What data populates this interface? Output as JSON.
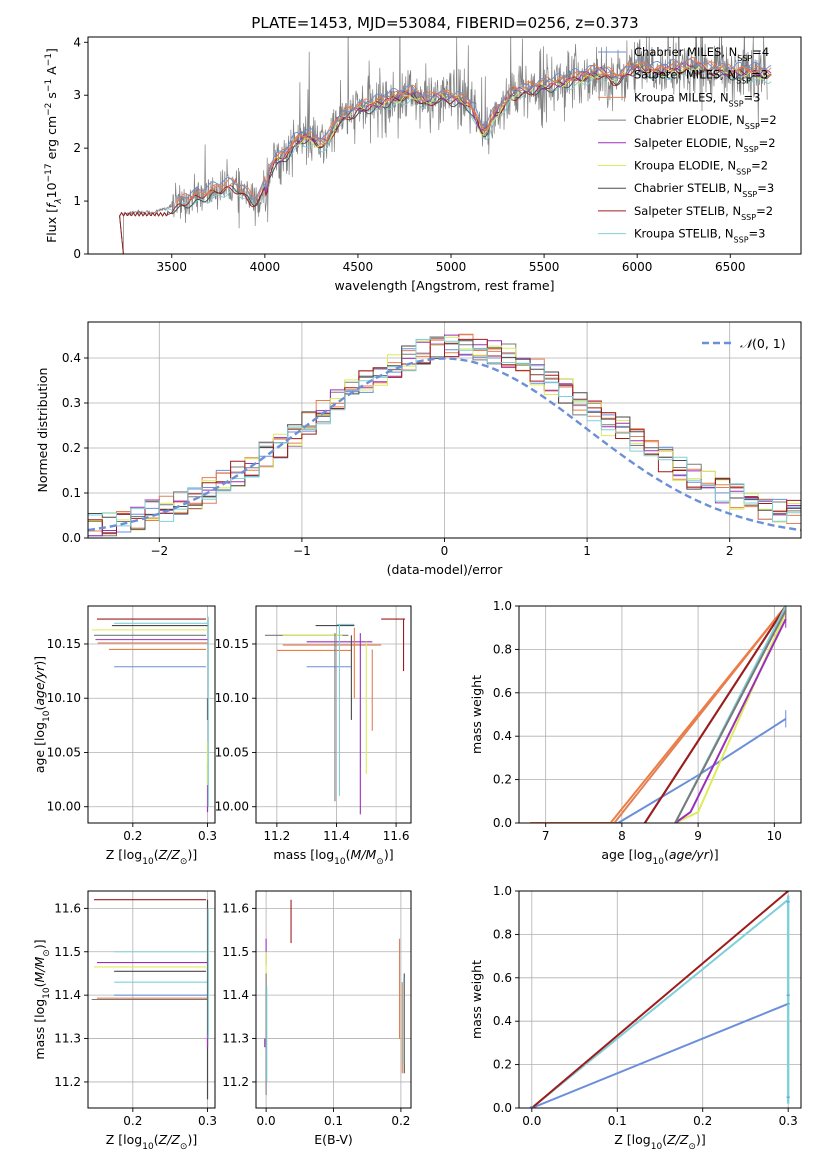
{
  "figure": {
    "title": "PLATE=1453, MJD=53084, FIBERID=0256, z=0.373"
  },
  "colors": {
    "Chabrier MILES": "#6b8fd8",
    "Salpeter MILES": "#ee7d42",
    "Kroupa MILES": "#e0805a",
    "Chabrier ELODIE": "#7a7a7a",
    "Salpeter ELODIE": "#9b30b8",
    "Kroupa ELODIE": "#dcec5a",
    "Chabrier STELIB": "#4a4a4a",
    "Salpeter STELIB": "#a01c1c",
    "Kroupa STELIB": "#7fd0d8"
  },
  "chart_data": [
    {
      "id": "spectrum",
      "type": "line",
      "xlabel": "wavelength [Angstrom, rest frame]",
      "ylabel": "Flux [f_λ10^-17 erg cm^-2 s^-1 A^-1]",
      "xlim": [
        3050,
        6880
      ],
      "ylim": [
        0,
        4.1
      ],
      "xticks": [
        3500,
        4000,
        4500,
        5000,
        5500,
        6000,
        6500
      ],
      "yticks": [
        0,
        1,
        2,
        3,
        4
      ],
      "grid": false,
      "legend": "upper right",
      "legend_entries": [
        {
          "name": "Chabrier MILES",
          "nssp": "4"
        },
        {
          "name": "Salpeter MILES",
          "nssp": "3"
        },
        {
          "name": "Kroupa MILES",
          "nssp": "3"
        },
        {
          "name": "Chabrier ELODIE",
          "nssp": "2"
        },
        {
          "name": "Salpeter ELODIE",
          "nssp": "2"
        },
        {
          "name": "Kroupa ELODIE",
          "nssp": "2"
        },
        {
          "name": "Chabrier STELIB",
          "nssp": "3"
        },
        {
          "name": "Salpeter STELIB",
          "nssp": "2"
        },
        {
          "name": "Kroupa STELIB",
          "nssp": "3"
        }
      ],
      "data_curve": {
        "x": [
          3240,
          3300,
          3400,
          3500,
          3600,
          3700,
          3800,
          3900,
          4000,
          4100,
          4200,
          4300,
          4400,
          4500,
          4600,
          4700,
          4800,
          4900,
          5000,
          5100,
          5200,
          5300,
          5400,
          5500,
          5600,
          5700,
          5800,
          5900,
          6000,
          6100,
          6200,
          6300,
          6400,
          6500,
          6600,
          6700
        ],
        "y": [
          0.75,
          0.8,
          0.78,
          0.9,
          1.05,
          1.15,
          1.3,
          1.45,
          1.7,
          2.0,
          2.2,
          2.35,
          2.55,
          2.75,
          2.85,
          2.95,
          3.05,
          3.0,
          2.95,
          2.9,
          2.8,
          3.0,
          3.1,
          3.2,
          3.25,
          3.35,
          3.45,
          3.5,
          3.55,
          3.45,
          3.5,
          3.55,
          3.5,
          3.45,
          3.45,
          3.4
        ]
      }
    },
    {
      "id": "residuals",
      "type": "bar",
      "xlabel": "(data-model)/error",
      "ylabel": "Normed distribution",
      "xlim": [
        -2.5,
        2.5
      ],
      "ylim": [
        0,
        0.48
      ],
      "xticks": [
        -2,
        -1,
        0,
        1,
        2
      ],
      "yticks": [
        0.0,
        0.1,
        0.2,
        0.3,
        0.4
      ],
      "grid": true,
      "legend": "upper right",
      "gaussian_label": "N(0,1)",
      "bin_width": 0.1
    },
    {
      "id": "age-vs-Z",
      "type": "scatter",
      "xlabel": "Z [log10(Z/Z_sun)]",
      "ylabel": "age [log10(age/yr)]",
      "xlim": [
        0.14,
        0.31
      ],
      "ylim": [
        9.985,
        10.185
      ],
      "xticks": [
        0.2,
        0.3
      ],
      "yticks": [
        10.0,
        10.05,
        10.1,
        10.15
      ],
      "grid": true
    },
    {
      "id": "age-vs-mass",
      "type": "scatter",
      "xlabel": "mass [log10(M/M_sun)]",
      "ylabel": "",
      "xlim": [
        11.13,
        11.65
      ],
      "ylim": [
        9.985,
        10.185
      ],
      "xticks": [
        11.2,
        11.4,
        11.6
      ],
      "yticks": [
        10.0,
        10.05,
        10.1,
        10.15
      ],
      "grid": true
    },
    {
      "id": "weight-vs-age",
      "type": "line",
      "xlabel": "age [log10(age/yr)]",
      "ylabel": "mass weight",
      "xlim": [
        6.65,
        10.35
      ],
      "ylim": [
        0,
        1.0
      ],
      "xticks": [
        7,
        8,
        9,
        10
      ],
      "yticks": [
        0.0,
        0.2,
        0.4,
        0.6,
        0.8,
        1.0
      ],
      "grid": true
    },
    {
      "id": "mass-vs-Z",
      "type": "scatter",
      "xlabel": "Z [log10(Z/Z_sun)]",
      "ylabel": "mass [log10(M/M_sun)]",
      "xlim": [
        0.14,
        0.31
      ],
      "ylim": [
        11.14,
        11.64
      ],
      "xticks": [
        0.2,
        0.3
      ],
      "yticks": [
        11.2,
        11.3,
        11.4,
        11.5,
        11.6
      ],
      "grid": true
    },
    {
      "id": "mass-vs-ebv",
      "type": "scatter",
      "xlabel": "E(B-V)",
      "ylabel": "",
      "xlim": [
        -0.015,
        0.215
      ],
      "ylim": [
        11.14,
        11.64
      ],
      "xticks": [
        0.0,
        0.1,
        0.2
      ],
      "yticks": [
        11.2,
        11.3,
        11.4,
        11.5,
        11.6
      ],
      "grid": true
    },
    {
      "id": "weight-vs-Z",
      "type": "line",
      "xlabel": "Z [log10(Z/Z_sun)]",
      "ylabel": "mass weight",
      "xlim": [
        -0.015,
        0.315
      ],
      "ylim": [
        0,
        1.0
      ],
      "xticks": [
        0.0,
        0.1,
        0.2,
        0.3
      ],
      "yticks": [
        0.0,
        0.2,
        0.4,
        0.6,
        0.8,
        1.0
      ],
      "grid": true
    }
  ]
}
